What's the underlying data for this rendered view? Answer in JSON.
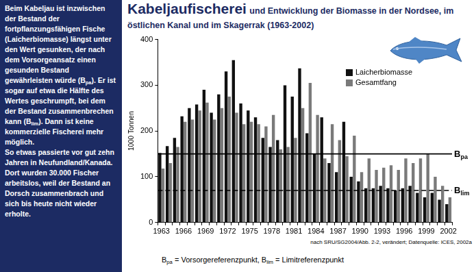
{
  "panel_text": [
    {
      "text": "Beim Kabeljau ist inzwischen der Bestand der fortpflanzungsfähigen Fische (Laicherbiomasse) längst unter den Wert gesunken, der nach dem Vorsorgeansatz einen gesunden Bestand gewährleisten würde (B"
    },
    {
      "sub": "pa"
    },
    {
      "text": "). Er ist sogar auf etwa die Hälfte des Wertes geschrumpft, bei dem der Bestand zusammenbrechen kann (B"
    },
    {
      "sub": "lim"
    },
    {
      "text": "). Dann ist keine kommerzielle Fischerei mehr möglich.\nSo etwas passierte vor gut zehn Jahren in Neufundland/Kanada. Dort wurden 30.000 Fischer arbeitslos, weil der Bestand an Dorsch zusammenbrach und sich bis heute nicht wieder erholte."
    }
  ],
  "chart_data": {
    "type": "bar",
    "title": "Kabeljaufischerei",
    "subtitle": "und Entwicklung der Biomasse in der Nordsee, im östlichen Kanal und im Skagerrak (1963-2002)",
    "y_label": "1000 Tonnen",
    "categories": [
      "1963",
      null,
      null,
      "1966",
      null,
      null,
      "1969",
      null,
      null,
      "1972",
      null,
      null,
      "1975",
      null,
      null,
      "1978",
      null,
      null,
      "1981",
      null,
      null,
      "1984",
      null,
      null,
      "1987",
      null,
      null,
      "1990",
      null,
      null,
      "1993",
      null,
      null,
      "1996",
      null,
      null,
      "1999",
      null,
      null,
      "2002"
    ],
    "series": [
      {
        "name": "Laicherbiomasse",
        "color": "#111111",
        "values": [
          152,
          167,
          185,
          232,
          250,
          258,
          290,
          240,
          280,
          330,
          355,
          260,
          245,
          230,
          185,
          165,
          180,
          300,
          275,
          337,
          195,
          150,
          230,
          130,
          110,
          220,
          100,
          90,
          75,
          75,
          80,
          75,
          70,
          75,
          80,
          65,
          55,
          65,
          50,
          40
        ]
      },
      {
        "name": "Gesamtfang",
        "color": "#7a7a7a",
        "values": [
          118,
          130,
          165,
          220,
          225,
          245,
          262,
          225,
          250,
          275,
          240,
          215,
          220,
          215,
          210,
          235,
          160,
          165,
          185,
          250,
          305,
          235,
          140,
          215,
          180,
          145,
          190,
          110,
          140,
          115,
          120,
          125,
          115,
          140,
          130,
          140,
          150,
          100,
          80,
          55
        ]
      }
    ],
    "ylim": [
      0,
      400
    ],
    "yticks": [
      0,
      100,
      200,
      300,
      400
    ],
    "grid": false,
    "legend": "upper right",
    "reference_lines": [
      {
        "label": "B",
        "subscript": "pa",
        "value": 150,
        "line_style": "solid"
      },
      {
        "label": "B",
        "subscript": "lim",
        "value": 70,
        "line_style": "dashed"
      }
    ],
    "source": "nach SRU/SG2004/Abb. 2-2, verändert; Datenquelle: ICES, 2002a",
    "footnote": [
      {
        "text": "B"
      },
      {
        "sub": "pa"
      },
      {
        "text": " = Vorsorgereferenzpunkt, B"
      },
      {
        "sub": "lim"
      },
      {
        "text": " = Limitreferenzpunkt"
      }
    ]
  }
}
